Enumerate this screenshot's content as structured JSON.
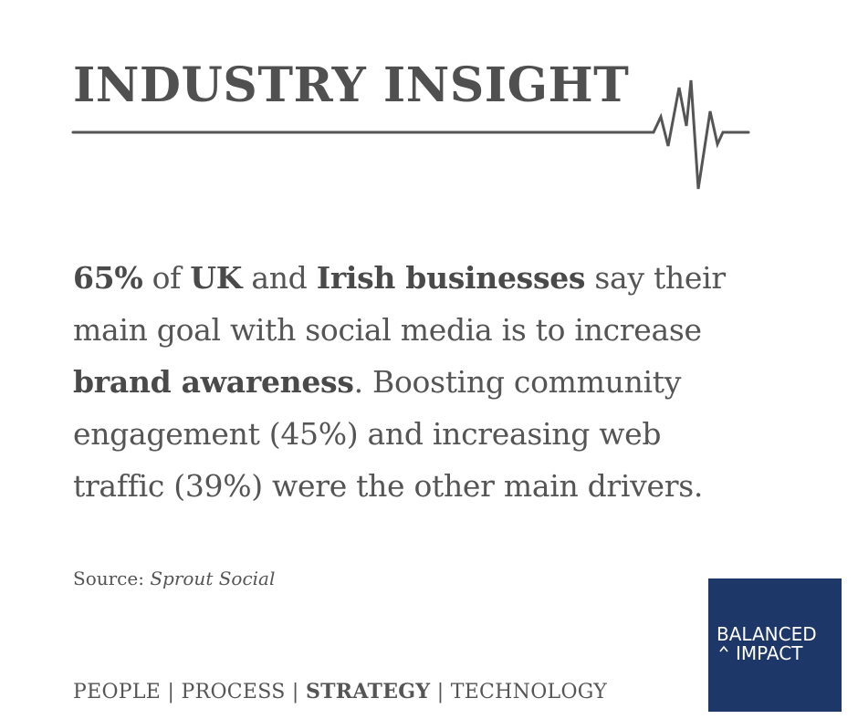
{
  "header": {
    "title": "INDUSTRY INSIGHT"
  },
  "insight": {
    "lines": [
      [
        {
          "text": "65%",
          "bold": true
        },
        {
          "text": " of ",
          "bold": false
        },
        {
          "text": "UK",
          "bold": true
        },
        {
          "text": " and ",
          "bold": false
        },
        {
          "text": "Irish businesses",
          "bold": true
        },
        {
          "text": " say their",
          "bold": false
        }
      ],
      [
        {
          "text": "main goal with social media is to increase",
          "bold": false
        }
      ],
      [
        {
          "text": "brand awareness",
          "bold": true
        },
        {
          "text": ". Boosting community",
          "bold": false
        }
      ],
      [
        {
          "text": "engagement (45%) and increasing web",
          "bold": false
        }
      ],
      [
        {
          "text": "traffic (39%) were the other main drivers.",
          "bold": false
        }
      ]
    ]
  },
  "source": {
    "label": "Source: ",
    "name": "Sprout Social"
  },
  "footer": {
    "items": [
      {
        "text": "PEOPLE",
        "bold": false
      },
      {
        "text": "PROCESS",
        "bold": false
      },
      {
        "text": "STRATEGY",
        "bold": true
      },
      {
        "text": "TECHNOLOGY",
        "bold": false
      }
    ],
    "separator": " | "
  },
  "logo": {
    "line1": "BALANCED",
    "line2": "IMPACT",
    "background_color": "#1e3769",
    "text_color": "#ffffff",
    "mark": "caret-icon"
  },
  "colors": {
    "text": "#555555",
    "title": "#505050",
    "rule": "#555555"
  },
  "decoration": {
    "icon": "heartbeat-pulse-icon"
  }
}
